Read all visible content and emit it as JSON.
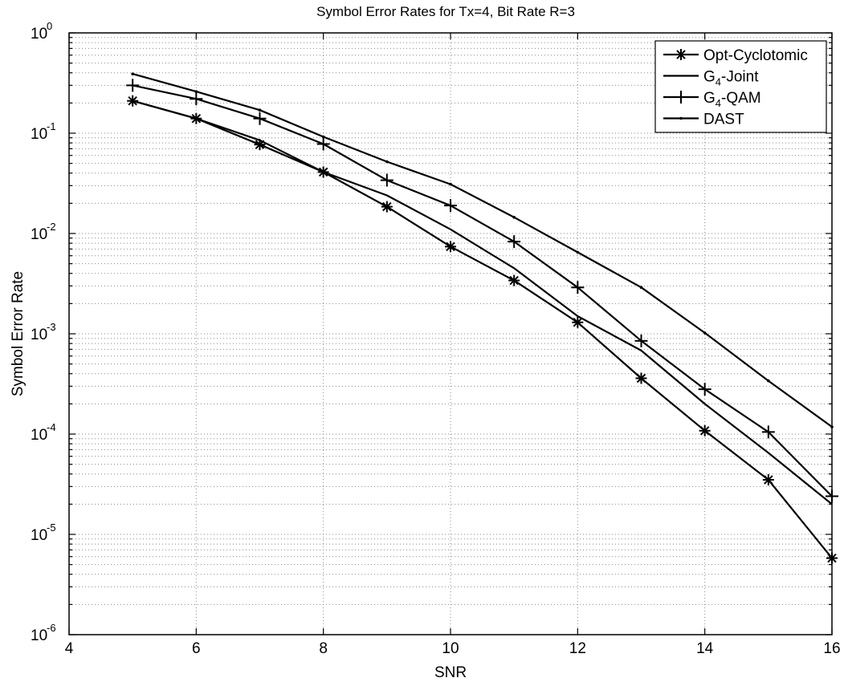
{
  "chart_data": {
    "type": "line",
    "title": "Symbol Error Rates for Tx=4, Bit Rate R=3",
    "xlabel": "SNR",
    "ylabel": "Symbol Error Rate",
    "xlim": [
      4,
      16
    ],
    "ylim": [
      1e-06,
      1
    ],
    "yscale": "log",
    "grid": true,
    "legend_position": "top-right",
    "x_ticks": [
      "4",
      "6",
      "8",
      "10",
      "12",
      "14",
      "16"
    ],
    "y_ticks": [
      {
        "base": "10",
        "exp": "0"
      },
      {
        "base": "10",
        "exp": "-1"
      },
      {
        "base": "10",
        "exp": "-2"
      },
      {
        "base": "10",
        "exp": "-3"
      },
      {
        "base": "10",
        "exp": "-4"
      },
      {
        "base": "10",
        "exp": "-5"
      },
      {
        "base": "10",
        "exp": "-6"
      }
    ],
    "series": [
      {
        "name": "Opt-Cyclotomic",
        "legend_main": "Opt-Cyclotomic",
        "legend_sub": "",
        "legend_tail": "",
        "marker": "asterisk",
        "x": [
          5,
          6,
          7,
          8,
          9,
          10,
          11,
          12,
          13,
          14,
          15,
          16
        ],
        "y": [
          0.21,
          0.14,
          0.077,
          0.041,
          0.0185,
          0.0074,
          0.0034,
          0.0013,
          0.00036,
          0.000108,
          3.5e-05,
          5.8e-06
        ]
      },
      {
        "name": "G4-Joint",
        "legend_main": "G",
        "legend_sub": "4",
        "legend_tail": "-Joint",
        "marker": "none",
        "x": [
          5,
          6,
          7,
          8,
          9,
          10,
          11,
          12,
          13,
          14,
          15,
          16
        ],
        "y": [
          0.21,
          0.14,
          0.085,
          0.041,
          0.024,
          0.011,
          0.0045,
          0.0015,
          0.00068,
          0.0002,
          6.5e-05,
          2e-05
        ]
      },
      {
        "name": "G4-QAM",
        "legend_main": "G",
        "legend_sub": "4",
        "legend_tail": "-QAM",
        "marker": "plus",
        "x": [
          5,
          6,
          7,
          8,
          9,
          10,
          11,
          12,
          13,
          14,
          15,
          16
        ],
        "y": [
          0.3,
          0.22,
          0.14,
          0.078,
          0.034,
          0.019,
          0.0083,
          0.0029,
          0.00085,
          0.00028,
          0.000105,
          2.4e-05
        ]
      },
      {
        "name": "DAST",
        "legend_main": "DAST",
        "legend_sub": "",
        "legend_tail": "",
        "marker": "dot",
        "x": [
          5,
          6,
          7,
          8,
          9,
          10,
          11,
          12,
          13,
          14,
          15,
          16
        ],
        "y": [
          0.39,
          0.26,
          0.17,
          0.092,
          0.052,
          0.031,
          0.0145,
          0.0065,
          0.0029,
          0.00102,
          0.00034,
          0.000118
        ]
      }
    ]
  }
}
